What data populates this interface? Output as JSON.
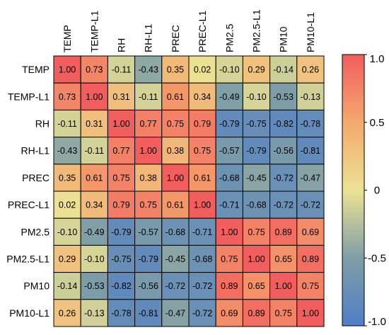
{
  "chart_data": {
    "type": "heatmap",
    "title": "",
    "xlabel": "",
    "ylabel": "",
    "rows": [
      "TEMP",
      "TEMP-L1",
      "RH",
      "RH-L1",
      "PREC",
      "PREC-L1",
      "PM2.5",
      "PM2.5-L1",
      "PM10",
      "PM10-L1"
    ],
    "columns": [
      "TEMP",
      "TEMP-L1",
      "RH",
      "RH-L1",
      "PREC",
      "PREC-L1",
      "PM2.5",
      "PM2.5-L1",
      "PM10",
      "PM10-L1"
    ],
    "values": [
      [
        1.0,
        0.73,
        -0.11,
        -0.43,
        0.35,
        0.02,
        -0.1,
        0.29,
        -0.14,
        0.26
      ],
      [
        0.73,
        1.0,
        0.31,
        -0.11,
        0.61,
        0.34,
        -0.49,
        -0.1,
        -0.53,
        -0.13
      ],
      [
        -0.11,
        0.31,
        1.0,
        0.77,
        0.75,
        0.79,
        -0.79,
        -0.75,
        -0.82,
        -0.78
      ],
      [
        -0.43,
        -0.11,
        0.77,
        1.0,
        0.38,
        0.75,
        -0.57,
        -0.79,
        -0.56,
        -0.81
      ],
      [
        0.35,
        0.61,
        0.75,
        0.38,
        1.0,
        0.61,
        -0.68,
        -0.45,
        -0.72,
        -0.47
      ],
      [
        0.02,
        0.34,
        0.79,
        0.75,
        0.61,
        1.0,
        -0.71,
        -0.68,
        -0.72,
        -0.72
      ],
      [
        -0.1,
        -0.49,
        -0.79,
        -0.57,
        -0.68,
        -0.71,
        1.0,
        0.75,
        0.89,
        0.69
      ],
      [
        0.29,
        -0.1,
        -0.75,
        -0.79,
        -0.45,
        -0.68,
        0.75,
        1.0,
        0.65,
        0.89
      ],
      [
        -0.14,
        -0.53,
        -0.82,
        -0.56,
        -0.72,
        -0.72,
        0.89,
        0.65,
        1.0,
        0.75
      ],
      [
        0.26,
        -0.13,
        -0.78,
        -0.81,
        -0.47,
        -0.72,
        0.69,
        0.89,
        0.75,
        1.0
      ]
    ],
    "colorbar": {
      "range": [
        -1.0,
        1.0
      ],
      "ticks": [
        1.0,
        0.5,
        0,
        -0.5,
        -1.0
      ],
      "tick_labels": [
        "1.0",
        "0.5",
        "0",
        "-0.5",
        "-1.0"
      ]
    },
    "colormap": [
      {
        "v": -1.0,
        "color": "#4f7ec8"
      },
      {
        "v": -0.5,
        "color": "#7f9ea6"
      },
      {
        "v": 0.0,
        "color": "#ece293"
      },
      {
        "v": 0.5,
        "color": "#f4a96e"
      },
      {
        "v": 1.0,
        "color": "#f25d5d"
      }
    ]
  }
}
